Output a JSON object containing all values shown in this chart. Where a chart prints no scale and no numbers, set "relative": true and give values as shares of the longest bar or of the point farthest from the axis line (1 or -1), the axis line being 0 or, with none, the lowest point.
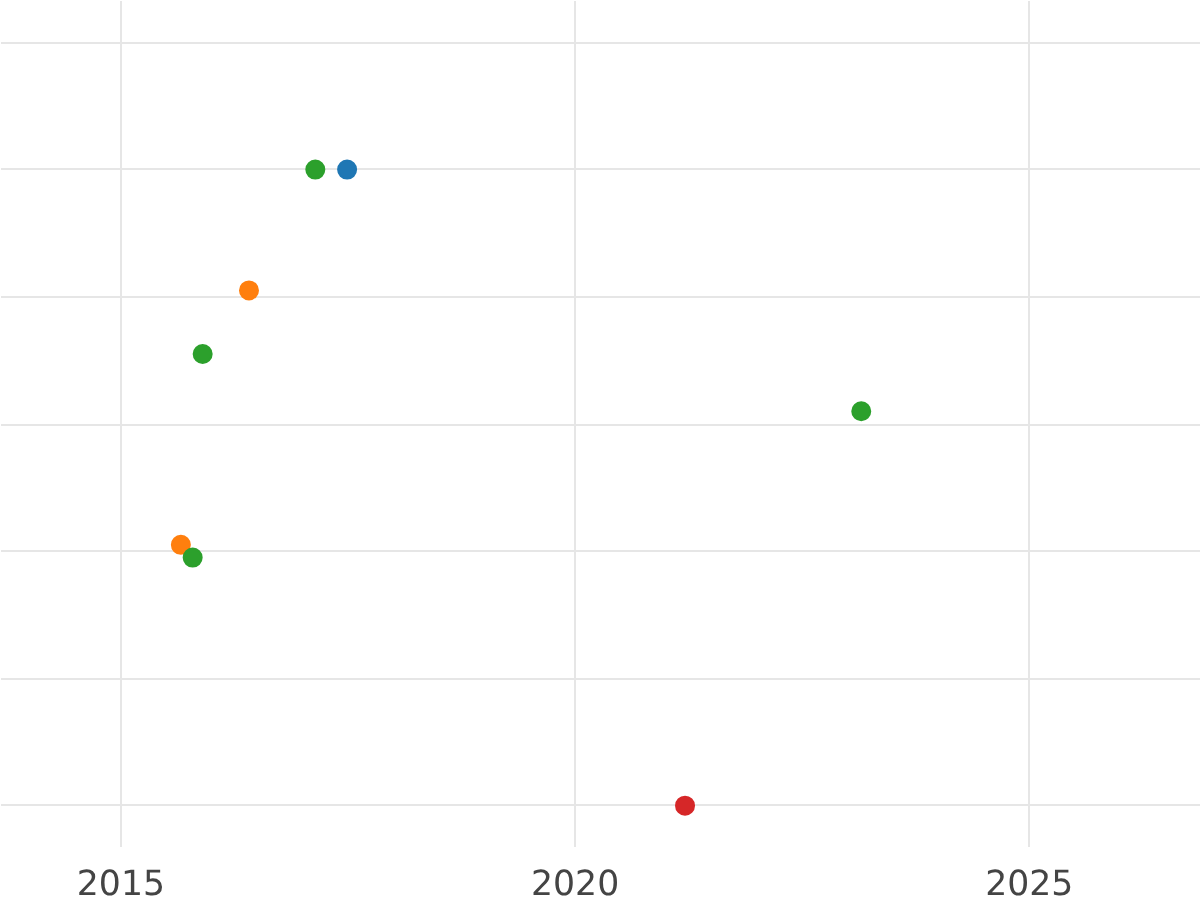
{
  "chart_data": {
    "type": "scatter",
    "relative": true,
    "xlim": [
      2013.68,
      2026.89
    ],
    "xticks": [
      2015,
      2020,
      2025
    ],
    "grid": true,
    "marker": "circle",
    "series": [
      {
        "color": "#1f77b4",
        "x": [
          2017.49
        ],
        "values": [
          1
        ]
      },
      {
        "color": "#ff7f0e",
        "x": [
          2016.41,
          2015.66
        ],
        "values": [
          0.81,
          0.41
        ]
      },
      {
        "color": "#2ca02c",
        "x": [
          2017.14,
          2015.9,
          2023.15,
          2015.79
        ],
        "values": [
          1,
          0.71,
          0.62,
          0.39
        ]
      },
      {
        "color": "#d62728",
        "x": [
          2021.21
        ],
        "values": [
          0
        ]
      }
    ]
  }
}
